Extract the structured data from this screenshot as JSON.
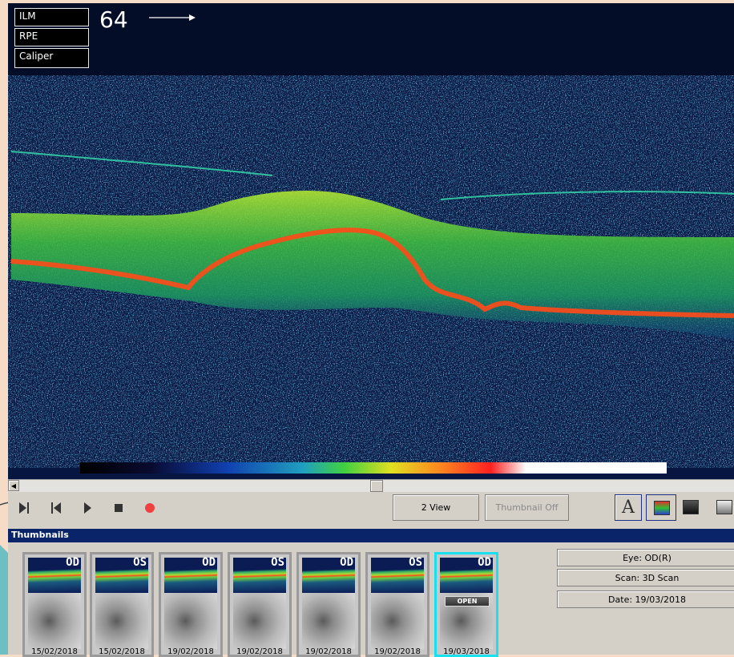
{
  "layer_buttons": [
    "ILM",
    "RPE",
    "Caliper"
  ],
  "frame_number": "64",
  "controls": {
    "view_button": "2 View",
    "thumbnail_button": "Thumbnail Off",
    "annotation_button": "A"
  },
  "thumbnails": {
    "title": "Thumbnails",
    "items": [
      {
        "eye": "OD",
        "date": "15/02/2018"
      },
      {
        "eye": "OS",
        "date": "15/02/2018"
      },
      {
        "eye": "OD",
        "date": "19/02/2018"
      },
      {
        "eye": "OS",
        "date": "19/02/2018"
      },
      {
        "eye": "OD",
        "date": "19/02/2018"
      },
      {
        "eye": "OS",
        "date": "19/02/2018"
      },
      {
        "eye": "OD",
        "date": "19/03/2018",
        "badge": "OPEN"
      }
    ]
  },
  "info": [
    "Eye: OD(R)",
    "Scan: 3D Scan",
    "Date: 19/03/2018"
  ]
}
